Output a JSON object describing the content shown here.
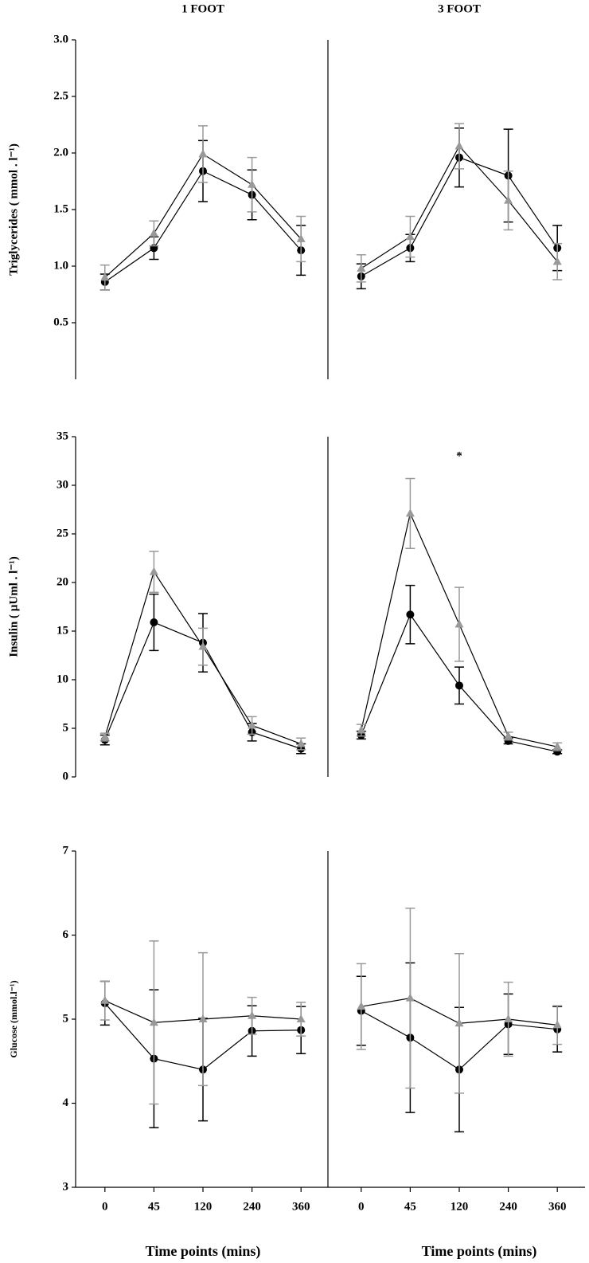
{
  "chart_data": [
    {
      "type": "line",
      "title": "1 FOOT",
      "ylabel": "Triglycerides ( mmol . l⁻¹)",
      "ylim": [
        0,
        3
      ],
      "yticks": [
        {
          "value": 0.5,
          "label": "0.5"
        },
        {
          "value": 1,
          "label": "1.0"
        },
        {
          "value": 1.5,
          "label": "1.5"
        },
        {
          "value": 2,
          "label": "2.0"
        },
        {
          "value": 2.5,
          "label": "2.5"
        },
        {
          "value": 3,
          "label": "3.0"
        }
      ],
      "series": [
        {
          "color": "#000000",
          "marker": "circle",
          "values": [
            0.86,
            1.16,
            1.84,
            1.63,
            1.14
          ],
          "errors": [
            0.07,
            0.1,
            0.27,
            0.22,
            0.22
          ]
        },
        {
          "color": "#999999",
          "marker": "triangle",
          "values": [
            0.9,
            1.29,
            1.99,
            1.72,
            1.24
          ],
          "errors": [
            0.11,
            0.11,
            0.25,
            0.24,
            0.2
          ]
        }
      ]
    },
    {
      "type": "line",
      "title": "3 FOOT",
      "ylim": [
        0,
        3
      ],
      "series": [
        {
          "color": "#000000",
          "marker": "circle",
          "values": [
            0.91,
            1.16,
            1.96,
            1.8,
            1.16
          ],
          "errors": [
            0.11,
            0.12,
            0.26,
            0.41,
            0.2
          ]
        },
        {
          "color": "#999999",
          "marker": "triangle",
          "values": [
            0.98,
            1.26,
            2.06,
            1.58,
            1.04
          ],
          "errors": [
            0.12,
            0.18,
            0.2,
            0.26,
            0.16
          ]
        }
      ]
    },
    {
      "type": "line",
      "ylabel": "Insulin ( µUml . l⁻¹)",
      "ylim": [
        0,
        35
      ],
      "yticks": [
        0,
        5,
        10,
        15,
        20,
        25,
        30,
        35
      ],
      "series": [
        {
          "color": "#000000",
          "marker": "circle",
          "values": [
            3.8,
            15.9,
            13.8,
            4.6,
            2.9
          ],
          "errors": [
            0.5,
            2.9,
            3.0,
            0.9,
            0.5
          ]
        },
        {
          "color": "#999999",
          "marker": "triangle",
          "values": [
            4.1,
            21.1,
            13.4,
            5.3,
            3.4
          ],
          "errors": [
            0.4,
            2.1,
            1.9,
            0.9,
            0.6
          ]
        }
      ]
    },
    {
      "type": "line",
      "ylim": [
        0,
        35
      ],
      "annotation": "*",
      "series": [
        {
          "color": "#000000",
          "marker": "circle",
          "values": [
            4.3,
            16.7,
            9.4,
            3.7,
            2.6
          ],
          "errors": [
            0.4,
            3.0,
            1.9,
            0.3,
            0.2
          ]
        },
        {
          "color": "#999999",
          "marker": "triangle",
          "values": [
            4.8,
            27.1,
            15.7,
            4.2,
            3.1
          ],
          "errors": [
            0.6,
            3.6,
            3.8,
            0.4,
            0.4
          ]
        }
      ]
    },
    {
      "type": "line",
      "ylabel": "Glucose (mmol.l⁻¹)",
      "xlabel": "Time points (mins)",
      "categories": [
        "0",
        "45",
        "120",
        "240",
        "360"
      ],
      "ylim": [
        3,
        7
      ],
      "yticks": [
        3,
        4,
        5,
        6,
        7
      ],
      "series": [
        {
          "color": "#000000",
          "marker": "circle",
          "values": [
            5.19,
            4.53,
            4.4,
            4.86,
            4.87
          ],
          "errors": [
            0.26,
            0.82,
            0.61,
            0.3,
            0.28
          ]
        },
        {
          "color": "#999999",
          "marker": "triangle",
          "values": [
            5.22,
            4.96,
            5.0,
            5.04,
            5.0
          ],
          "errors": [
            0.23,
            0.97,
            0.79,
            0.22,
            0.2
          ]
        }
      ]
    },
    {
      "type": "line",
      "xlabel": "Time points (mins)",
      "categories": [
        "0",
        "45",
        "120",
        "240",
        "360"
      ],
      "ylim": [
        3,
        7
      ],
      "series": [
        {
          "color": "#000000",
          "marker": "circle",
          "values": [
            5.1,
            4.78,
            4.4,
            4.94,
            4.88
          ],
          "errors": [
            0.41,
            0.89,
            0.74,
            0.36,
            0.27
          ]
        },
        {
          "color": "#999999",
          "marker": "triangle",
          "values": [
            5.15,
            5.25,
            4.95,
            5.0,
            4.93
          ],
          "errors": [
            0.51,
            1.07,
            0.83,
            0.44,
            0.23
          ]
        }
      ]
    }
  ]
}
